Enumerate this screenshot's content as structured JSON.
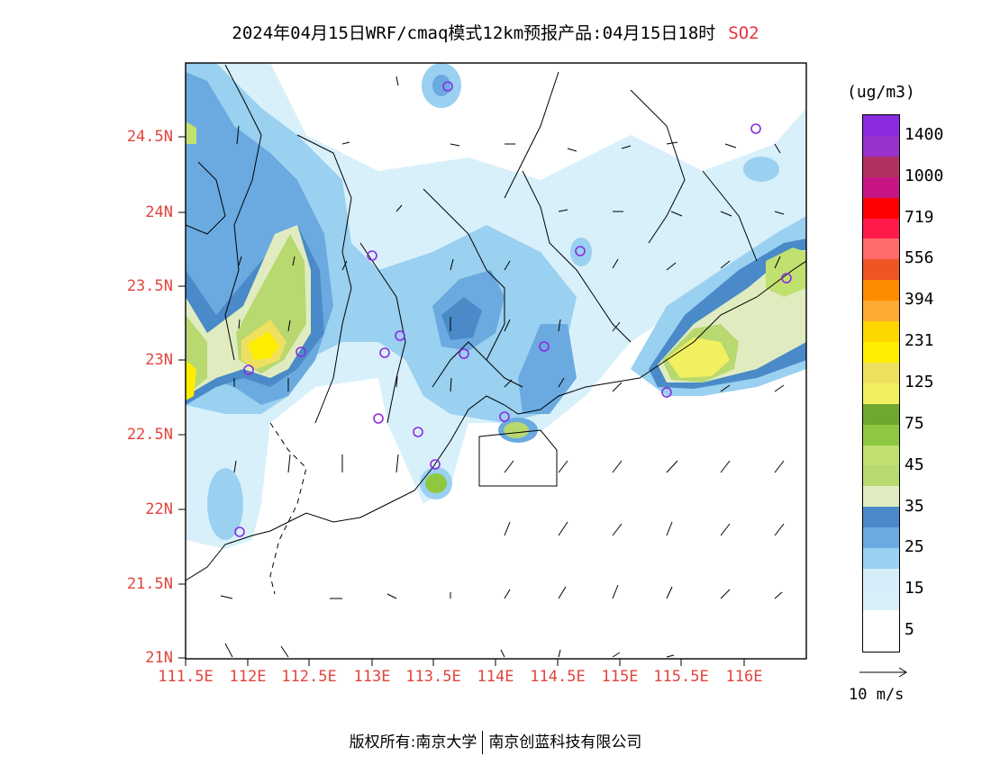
{
  "title": {
    "text": "2024年04月15日WRF/cmaq模式12km预报产品:04月15日18时",
    "pollutant": "SO2"
  },
  "map": {
    "lat_labels": [
      "24.5N",
      "24N",
      "23.5N",
      "23N",
      "22.5N",
      "22N",
      "21.5N",
      "21N"
    ],
    "lon_labels": [
      "111.5E",
      "112E",
      "112.5E",
      "113E",
      "113.5E",
      "114E",
      "114.5E",
      "115E",
      "115.5E",
      "116E"
    ],
    "lat_range": [
      21.0,
      25.0
    ],
    "lon_range": [
      111.5,
      116.5
    ]
  },
  "legend": {
    "unit": "(ug/m3)",
    "labels": [
      "1400",
      "1000",
      "719",
      "556",
      "394",
      "231",
      "125",
      "75",
      "45",
      "35",
      "25",
      "15",
      "5"
    ],
    "colors": [
      "#8a2be2",
      "#9932cc",
      "#b03060",
      "#c71585",
      "#ff0000",
      "#ff1a4b",
      "#ff6a6a",
      "#ee5522",
      "#ff8c00",
      "#ffaa33",
      "#ffd700",
      "#ffee00",
      "#f0e060",
      "#f0f060",
      "#6fa830",
      "#8fc840",
      "#c0e070",
      "#b8d870",
      "#e0ecc0",
      "#4a8ac8",
      "#6aaae0",
      "#9ad0f0",
      "#d6eefa",
      "#d8f0fa",
      "#ffffff",
      "#ffffff"
    ]
  },
  "wind": {
    "label": "10 m/s"
  },
  "footer": {
    "left": "版权所有:南京大学",
    "right": "南京创蓝科技有限公司"
  }
}
